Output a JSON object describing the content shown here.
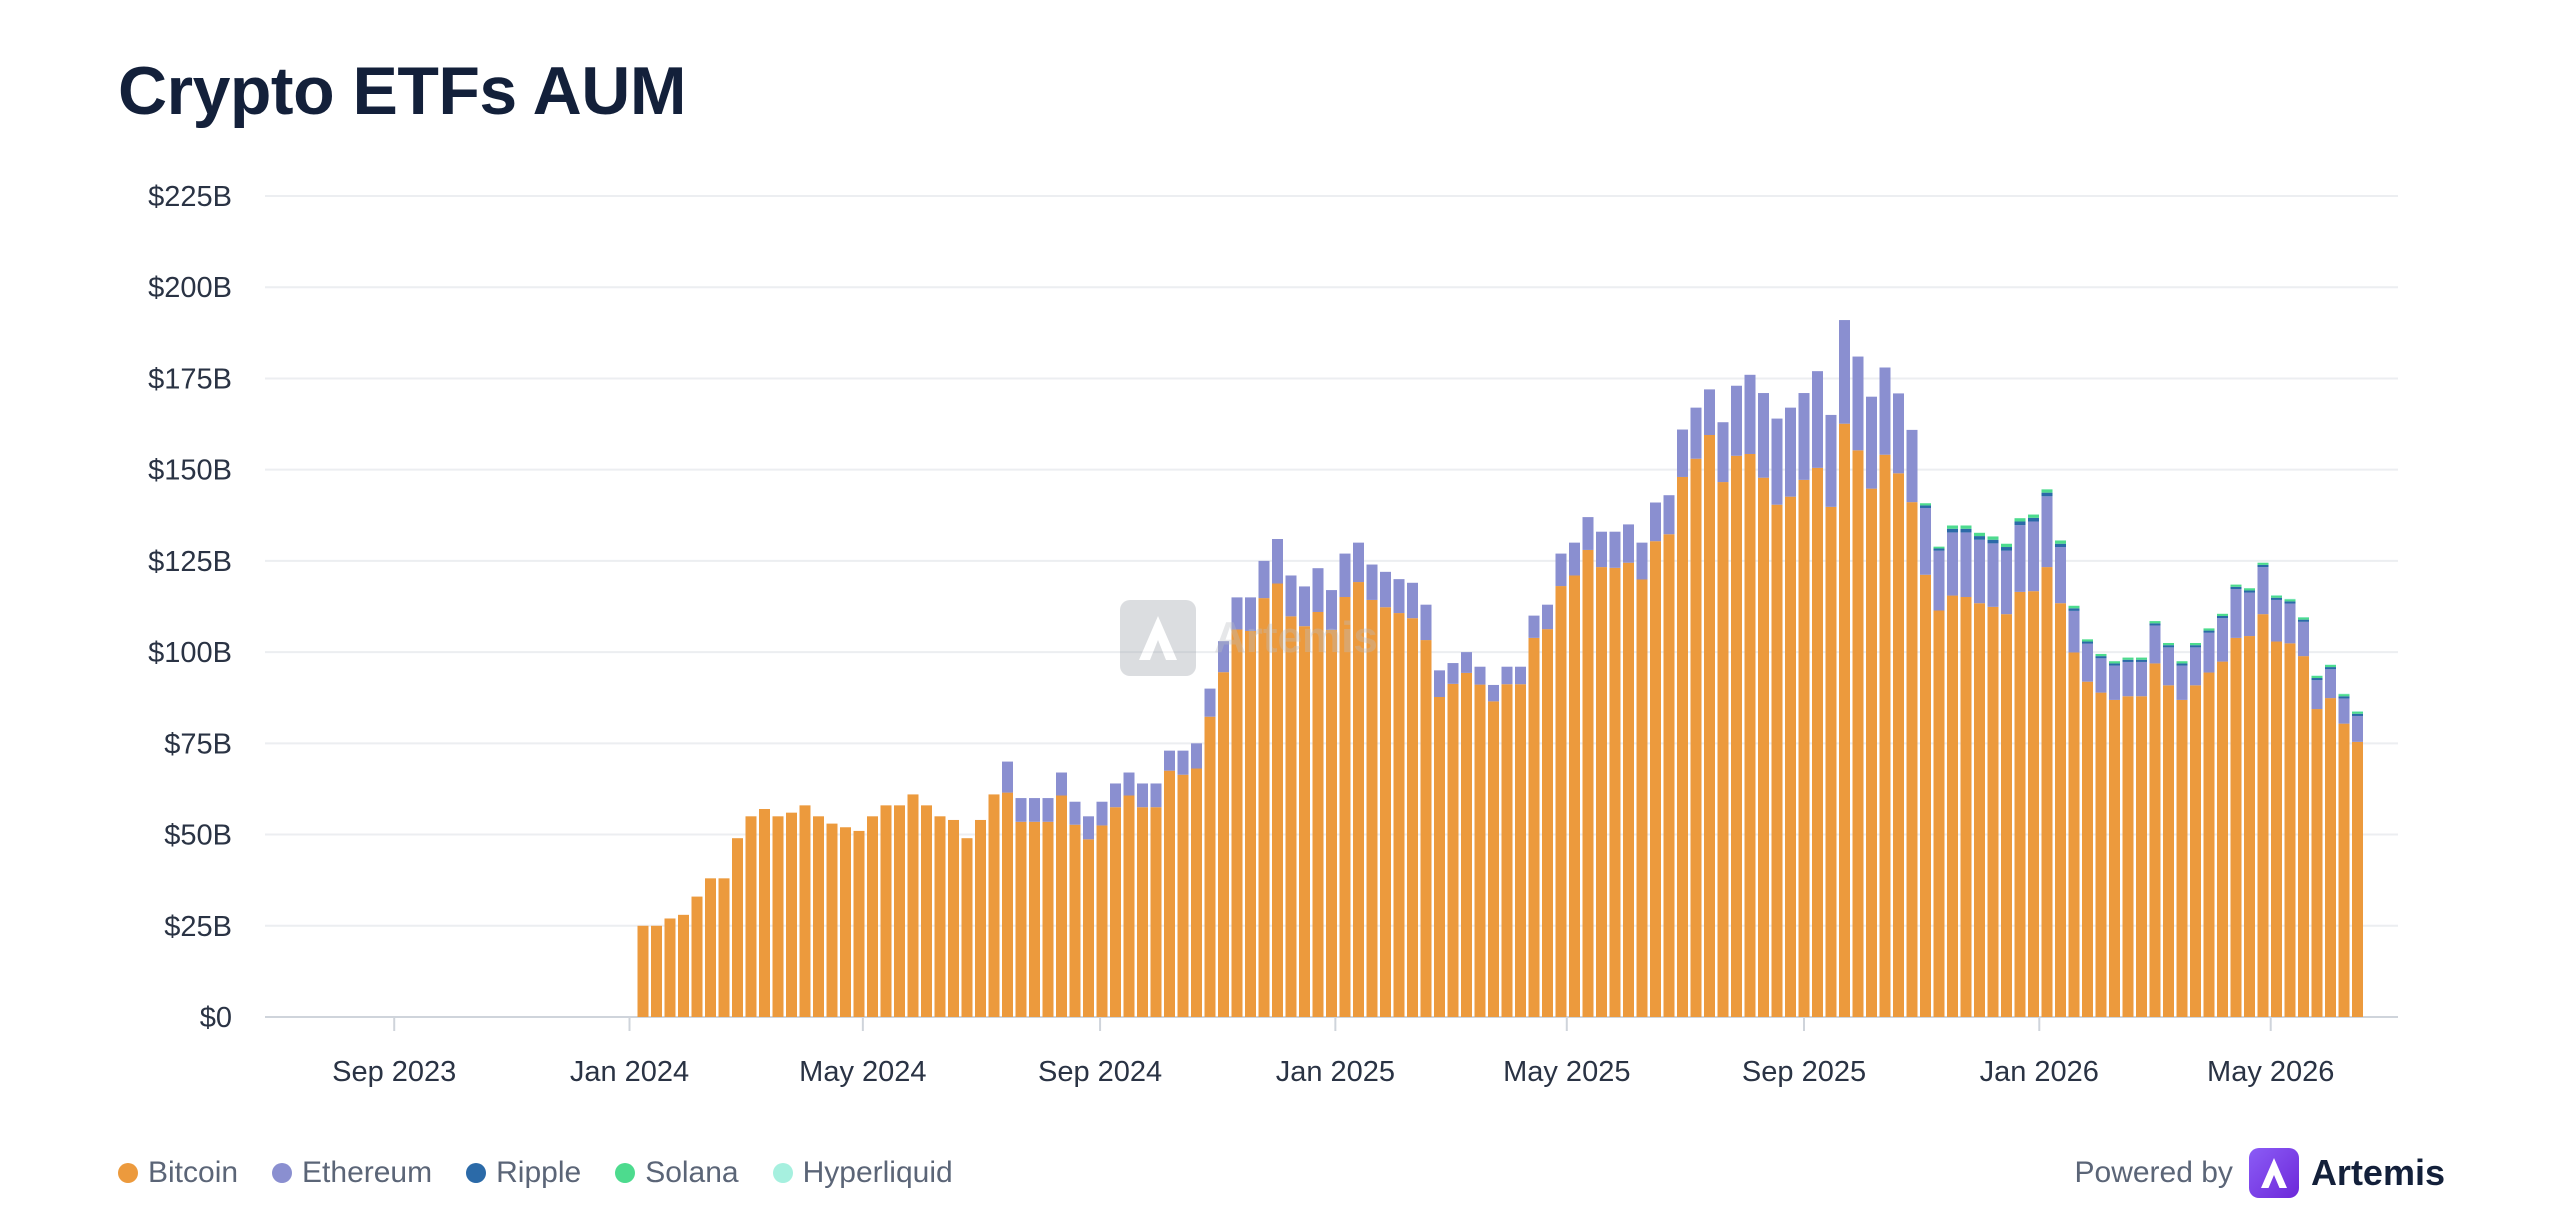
{
  "title": "Crypto ETFs AUM",
  "legend": {
    "items": [
      {
        "label": "Bitcoin",
        "color": "#ec9a3d"
      },
      {
        "label": "Ethereum",
        "color": "#8a8fd0"
      },
      {
        "label": "Ripple",
        "color": "#2b6aa8"
      },
      {
        "label": "Solana",
        "color": "#4ddb8e"
      },
      {
        "label": "Hyperliquid",
        "color": "#a6f0df"
      }
    ]
  },
  "branding": {
    "powered_by": "Powered by",
    "name": "Artemis",
    "watermark": "Artemis"
  },
  "chart_data": {
    "type": "bar",
    "stacked": true,
    "title": "Crypto ETFs AUM",
    "xlabel": "",
    "ylabel": "",
    "y_unit": "$B",
    "ylim": [
      0,
      225
    ],
    "yticks": [
      "$0",
      "$25B",
      "$50B",
      "$75B",
      "$100B",
      "$125B",
      "$150B",
      "$175B",
      "$200B",
      "$225B"
    ],
    "xticks": [
      "Sep 2023",
      "Jan 2024",
      "May 2024",
      "Sep 2024",
      "Jan 2025",
      "May 2025",
      "Sep 2025",
      "Jan 2026",
      "May 2026"
    ],
    "x_range": [
      "2023-06-26",
      "2026-07-06"
    ],
    "x_frequency": "weekly",
    "grid": true,
    "legend_position": "bottom-left",
    "x_first": "2024-01-08",
    "total": [
      25,
      25,
      27,
      28,
      33,
      38,
      38,
      49,
      55,
      57,
      55,
      56,
      58,
      55,
      53,
      52,
      51,
      55,
      58,
      58,
      61,
      58,
      55,
      54,
      49,
      54,
      61,
      70,
      60,
      60,
      60,
      67,
      59,
      55,
      59,
      64,
      67,
      64,
      64,
      73,
      73,
      75,
      90,
      103,
      115,
      115,
      125,
      131,
      121,
      118,
      123,
      117,
      127,
      130,
      124,
      122,
      120,
      119,
      113,
      95,
      97,
      100,
      96,
      91,
      96,
      96,
      110,
      113,
      127,
      130,
      137,
      133,
      133,
      135,
      130,
      141,
      143,
      161,
      167,
      172,
      163,
      173,
      176,
      171,
      164,
      167,
      171,
      177,
      165,
      191,
      181,
      170,
      178,
      171,
      161,
      141,
      129,
      135,
      135,
      133,
      132,
      130,
      137,
      138,
      145,
      131,
      113,
      104,
      100,
      98,
      99,
      99,
      109,
      103,
      98,
      103,
      107,
      111,
      119,
      118,
      125,
      116,
      115,
      110,
      94,
      97,
      89,
      84
    ],
    "series": [
      {
        "name": "Bitcoin",
        "color": "#ec9a3d",
        "values": [
          25,
          25,
          27,
          28,
          33,
          38,
          38,
          49,
          55,
          57,
          55,
          56,
          58,
          55,
          53,
          52,
          51,
          55,
          58,
          58,
          61,
          58,
          55,
          54,
          49,
          54,
          61,
          61.5,
          53.5,
          53.5,
          53.5,
          60.7,
          52.7,
          48.7,
          52.5,
          57.5,
          60.7,
          57.5,
          57.5,
          67.5,
          66.4,
          68.1,
          82.3,
          94.5,
          106.2,
          105.8,
          114.8,
          118.8,
          109.8,
          107.1,
          111.0,
          106.1,
          115.1,
          119.2,
          114.3,
          112.3,
          110.7,
          109.3,
          103.3,
          87.7,
          91.3,
          94.3,
          91.1,
          86.5,
          91.2,
          91.2,
          103.9,
          106.3,
          118.1,
          121.0,
          128.0,
          123.3,
          123.1,
          124.5,
          119.9,
          130.4,
          132.3,
          148.0,
          153.0,
          159.5,
          146.6,
          153.8,
          154.3,
          147.8,
          140.4,
          142.6,
          147.2,
          150.5,
          139.8,
          162.6,
          155.3,
          144.8,
          154.1,
          149.0,
          141.1,
          121.2,
          111.4,
          115.5,
          115.1,
          113.4,
          112.4,
          110.4,
          116.5,
          116.7,
          123.3,
          113.4,
          99.9,
          91.9,
          88.9,
          86.9,
          87.9,
          87.9,
          96.9,
          90.9,
          86.9,
          90.9,
          94.4,
          97.4,
          103.9,
          104.4,
          110.4,
          102.9,
          102.4,
          98.9,
          84.4,
          87.4,
          80.4,
          75.4
        ]
      },
      {
        "name": "Ethereum",
        "color": "#8a8fd0",
        "values": [
          0,
          0,
          0,
          0,
          0,
          0,
          0,
          0,
          0,
          0,
          0,
          0,
          0,
          0,
          0,
          0,
          0,
          0,
          0,
          0,
          0,
          0,
          0,
          0,
          0,
          0,
          0,
          8.5,
          6.5,
          6.5,
          6.5,
          6.3,
          6.3,
          6.3,
          6.5,
          6.5,
          6.3,
          6.5,
          6.5,
          5.5,
          6.6,
          6.9,
          7.7,
          8.5,
          8.8,
          9.2,
          10.2,
          12.2,
          11.2,
          10.9,
          12.0,
          10.9,
          11.9,
          10.8,
          9.7,
          9.7,
          9.3,
          9.7,
          9.7,
          7.3,
          5.7,
          5.7,
          4.9,
          4.5,
          4.8,
          4.8,
          6.1,
          6.7,
          8.9,
          9.0,
          9.0,
          9.7,
          9.9,
          10.5,
          10.1,
          10.6,
          10.7,
          13.0,
          14.0,
          12.5,
          16.4,
          19.2,
          21.7,
          23.2,
          23.6,
          24.4,
          23.8,
          26.5,
          25.2,
          28.4,
          25.7,
          25.2,
          23.9,
          21.9,
          19.8,
          18.3,
          16.4,
          17.3,
          17.7,
          17.4,
          17.4,
          17.4,
          18.3,
          19.1,
          19.4,
          15.4,
          11.4,
          10.4,
          9.4,
          9.4,
          9.4,
          9.4,
          10.4,
          10.4,
          9.4,
          10.4,
          10.9,
          11.9,
          13.4,
          11.9,
          12.9,
          11.4,
          10.9,
          9.4,
          7.9,
          7.9,
          6.9,
          7.1
        ]
      },
      {
        "name": "Ripple",
        "color": "#2b6aa8",
        "values": [
          0,
          0,
          0,
          0,
          0,
          0,
          0,
          0,
          0,
          0,
          0,
          0,
          0,
          0,
          0,
          0,
          0,
          0,
          0,
          0,
          0,
          0,
          0,
          0,
          0,
          0,
          0,
          0,
          0,
          0,
          0,
          0,
          0,
          0,
          0,
          0,
          0,
          0,
          0,
          0,
          0,
          0,
          0,
          0,
          0,
          0,
          0,
          0,
          0,
          0,
          0,
          0,
          0,
          0,
          0,
          0,
          0,
          0,
          0,
          0,
          0,
          0,
          0,
          0,
          0,
          0,
          0,
          0,
          0,
          0,
          0,
          0,
          0,
          0,
          0,
          0,
          0,
          0,
          0,
          0,
          0,
          0,
          0,
          0,
          0,
          0,
          0,
          0,
          0,
          0,
          0,
          0,
          0,
          0,
          0,
          0.7,
          0.6,
          1.0,
          1.0,
          1.0,
          1.0,
          1.0,
          1.0,
          1.0,
          1.0,
          0.9,
          0.7,
          0.6,
          0.6,
          0.6,
          0.6,
          0.6,
          0.6,
          0.6,
          0.6,
          0.6,
          0.6,
          0.6,
          0.6,
          0.6,
          0.6,
          0.6,
          0.6,
          0.6,
          0.6,
          0.6,
          0.6,
          0.6
        ]
      },
      {
        "name": "Solana",
        "color": "#4ddb8e",
        "values": [
          0,
          0,
          0,
          0,
          0,
          0,
          0,
          0,
          0,
          0,
          0,
          0,
          0,
          0,
          0,
          0,
          0,
          0,
          0,
          0,
          0,
          0,
          0,
          0,
          0,
          0,
          0,
          0,
          0,
          0,
          0,
          0,
          0,
          0,
          0,
          0,
          0,
          0,
          0,
          0,
          0,
          0,
          0,
          0,
          0,
          0,
          0,
          0,
          0,
          0,
          0,
          0,
          0,
          0,
          0,
          0,
          0,
          0,
          0,
          0,
          0,
          0,
          0,
          0,
          0,
          0,
          0,
          0,
          0,
          0,
          0,
          0,
          0,
          0,
          0,
          0,
          0,
          0,
          0,
          0,
          0,
          0,
          0,
          0,
          0,
          0,
          0,
          0,
          0,
          0,
          0,
          0,
          0,
          0,
          0,
          0.6,
          0.5,
          0.9,
          0.9,
          0.9,
          0.9,
          0.9,
          0.9,
          0.9,
          0.9,
          0.9,
          0.7,
          0.6,
          0.6,
          0.6,
          0.6,
          0.6,
          0.6,
          0.6,
          0.6,
          0.6,
          0.6,
          0.6,
          0.6,
          0.6,
          0.6,
          0.6,
          0.6,
          0.6,
          0.6,
          0.6,
          0.6,
          0.6
        ]
      },
      {
        "name": "Hyperliquid",
        "color": "#a6f0df",
        "values": [
          0,
          0,
          0,
          0,
          0,
          0,
          0,
          0,
          0,
          0,
          0,
          0,
          0,
          0,
          0,
          0,
          0,
          0,
          0,
          0,
          0,
          0,
          0,
          0,
          0,
          0,
          0,
          0,
          0,
          0,
          0,
          0,
          0,
          0,
          0,
          0,
          0,
          0,
          0,
          0,
          0,
          0,
          0,
          0,
          0,
          0,
          0,
          0,
          0,
          0,
          0,
          0,
          0,
          0,
          0,
          0,
          0,
          0,
          0,
          0,
          0,
          0,
          0,
          0,
          0,
          0,
          0,
          0,
          0,
          0,
          0,
          0,
          0,
          0,
          0,
          0,
          0,
          0,
          0,
          0,
          0,
          0,
          0,
          0,
          0,
          0,
          0,
          0,
          0,
          0,
          0,
          0,
          0,
          0,
          0,
          0,
          0,
          0,
          0,
          0,
          0,
          0,
          0,
          0,
          0,
          0,
          0,
          0,
          0,
          0,
          0,
          0,
          0,
          0,
          0,
          0,
          0,
          0,
          0,
          0,
          0,
          0.1,
          0.1,
          0.1,
          0.1,
          0.1,
          0.1,
          0.1
        ]
      }
    ]
  }
}
